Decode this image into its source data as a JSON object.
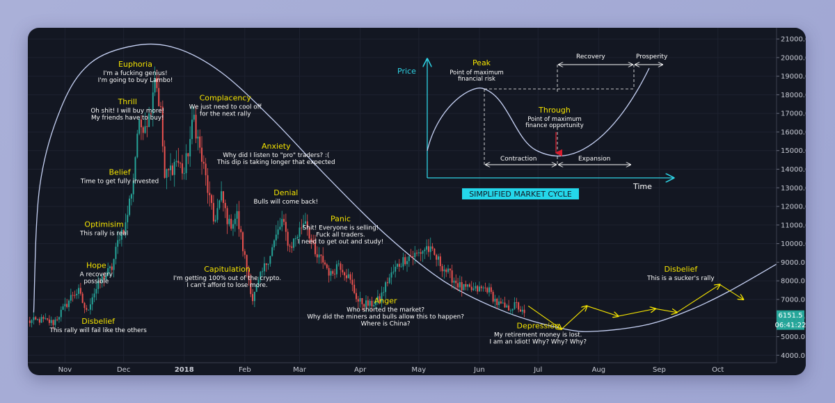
{
  "chart_data": {
    "type": "candlestick",
    "y_axis": {
      "ticks": [
        4000,
        5000,
        6000,
        7000,
        8000,
        9000,
        10000,
        11000,
        12000,
        13000,
        14000,
        15000,
        16000,
        17000,
        18000,
        19000,
        20000,
        21000
      ],
      "tick_labels": [
        "4000.0",
        "5000.0",
        "6000.0",
        "7000.0",
        "8000.0",
        "9000.0",
        "10000.0",
        "11000.0",
        "12000.0",
        "13000.0",
        "14000.0",
        "15000.0",
        "16000.0",
        "17000.0",
        "18000.0",
        "19000.0",
        "20000.0",
        "21000.0"
      ],
      "ylim": [
        3600,
        21600
      ]
    },
    "x_axis": {
      "tick_labels": [
        "Nov",
        "Dec",
        "2018",
        "Feb",
        "Mar",
        "Apr",
        "May",
        "Jun",
        "Jul",
        "Aug",
        "Sep",
        "Oct"
      ],
      "tick_dates": [
        "2017-11-01",
        "2017-12-01",
        "2018-01-01",
        "2018-02-01",
        "2018-03-01",
        "2018-04-01",
        "2018-05-01",
        "2018-06-01",
        "2018-07-01",
        "2018-08-01",
        "2018-09-01",
        "2018-10-01"
      ],
      "xlim": [
        "2017-10-13",
        "2018-10-31"
      ]
    },
    "price_points": [
      [
        "2017-10-13",
        5800
      ],
      [
        "2017-10-20",
        5900
      ],
      [
        "2017-10-26",
        5750
      ],
      [
        "2017-11-01",
        6600
      ],
      [
        "2017-11-05",
        7300
      ],
      [
        "2017-11-08",
        7400
      ],
      [
        "2017-11-12",
        6300
      ],
      [
        "2017-11-15",
        7200
      ],
      [
        "2017-11-20",
        8100
      ],
      [
        "2017-11-25",
        8700
      ],
      [
        "2017-11-29",
        10500
      ],
      [
        "2017-12-02",
        11000
      ],
      [
        "2017-12-06",
        13500
      ],
      [
        "2017-12-08",
        16000
      ],
      [
        "2017-12-11",
        16500
      ],
      [
        "2017-12-14",
        16800
      ],
      [
        "2017-12-17",
        19200
      ],
      [
        "2017-12-20",
        17000
      ],
      [
        "2017-12-22",
        13500
      ],
      [
        "2017-12-25",
        14000
      ],
      [
        "2017-12-28",
        14500
      ],
      [
        "2018-01-01",
        13800
      ],
      [
        "2018-01-06",
        16800
      ],
      [
        "2018-01-09",
        15000
      ],
      [
        "2018-01-12",
        13500
      ],
      [
        "2018-01-16",
        11200
      ],
      [
        "2018-01-20",
        12500
      ],
      [
        "2018-01-24",
        11000
      ],
      [
        "2018-01-28",
        11500
      ],
      [
        "2018-02-01",
        9200
      ],
      [
        "2018-02-05",
        7000
      ],
      [
        "2018-02-09",
        8200
      ],
      [
        "2018-02-14",
        9500
      ],
      [
        "2018-02-20",
        11200
      ],
      [
        "2018-02-24",
        9800
      ],
      [
        "2018-02-28",
        10500
      ],
      [
        "2018-03-04",
        11400
      ],
      [
        "2018-03-09",
        9300
      ],
      [
        "2018-03-13",
        9100
      ],
      [
        "2018-03-17",
        8300
      ],
      [
        "2018-03-21",
        9000
      ],
      [
        "2018-03-26",
        8200
      ],
      [
        "2018-03-31",
        6900
      ],
      [
        "2018-04-06",
        6700
      ],
      [
        "2018-04-11",
        7000
      ],
      [
        "2018-04-15",
        8000
      ],
      [
        "2018-04-20",
        8800
      ],
      [
        "2018-04-25",
        9300
      ],
      [
        "2018-04-30",
        9400
      ],
      [
        "2018-05-05",
        9800
      ],
      [
        "2018-05-10",
        9200
      ],
      [
        "2018-05-16",
        8400
      ],
      [
        "2018-05-23",
        7600
      ],
      [
        "2018-05-29",
        7500
      ],
      [
        "2018-06-05",
        7600
      ],
      [
        "2018-06-10",
        6800
      ],
      [
        "2018-06-15",
        6500
      ],
      [
        "2018-06-20",
        6700
      ],
      [
        "2018-06-24",
        6150
      ]
    ],
    "current_price": "6151.5",
    "countdown": "06:41:22",
    "annotations": [
      {
        "date": "2017-11-17",
        "price": 8700,
        "title": "Hope",
        "text": [
          "A recovery",
          "possible"
        ]
      },
      {
        "date": "2017-11-18",
        "price": 5700,
        "title": "Disbelief",
        "text": [
          "This rally will fail like the others"
        ]
      },
      {
        "date": "2017-11-21",
        "price": 10900,
        "title": "Optimisim",
        "text": [
          "This rally is real"
        ]
      },
      {
        "date": "2017-11-29",
        "price": 13700,
        "title": "Belief",
        "text": [
          "Time to get fully invested"
        ]
      },
      {
        "date": "2017-12-03",
        "price": 17500,
        "title": "Thrill",
        "text": [
          "Oh shit! I will buy more!",
          "My friends have to buy!"
        ]
      },
      {
        "date": "2017-12-07",
        "price": 19500,
        "title": "Euphoria",
        "text": [
          "I'm a fucking genius!",
          "I'm going to buy Lambo!"
        ]
      },
      {
        "date": "2018-01-22",
        "price": 17700,
        "title": "Complacency",
        "text": [
          "We just need to cool off",
          "for the next rally"
        ]
      },
      {
        "date": "2018-02-17",
        "price": 15100,
        "title": "Anxiety",
        "text": [
          "Why did I listen to  \"pro\" traders? :(",
          "This dip is taking longer that expected"
        ]
      },
      {
        "date": "2018-02-22",
        "price": 12600,
        "title": "Denial",
        "text": [
          "Bulls will come back!"
        ]
      },
      {
        "date": "2018-03-22",
        "price": 11200,
        "title": "Panic",
        "text": [
          "Shit! Everyone is selling!",
          "Fuck all traders.",
          "I need to get out and study!"
        ]
      },
      {
        "date": "2018-01-23",
        "price": 8500,
        "title": "Capitulation",
        "text": [
          "I'm getting 100% out of the crypto.",
          "I can't afford to lose more."
        ]
      },
      {
        "date": "2018-04-14",
        "price": 6800,
        "title": "Anger",
        "text": [
          "Who shorted the market?",
          "Why did the miners and bulls allow this to happen?",
          "Where is China?"
        ]
      },
      {
        "date": "2018-07-01",
        "price": 5450,
        "title": "Depression",
        "text": [
          "My retirement money is lost.",
          "I am an idiot! Why? Why? Why?"
        ]
      },
      {
        "date": "2018-09-12",
        "price": 8500,
        "title": "Disbelief",
        "text": [
          "This is a sucker's rally"
        ]
      }
    ],
    "projection_points": [
      [
        "2018-06-26",
        6650
      ],
      [
        "2018-07-13",
        5400
      ],
      [
        "2018-07-26",
        6650
      ],
      [
        "2018-08-11",
        6100
      ],
      [
        "2018-08-30",
        6500
      ],
      [
        "2018-09-10",
        6300
      ],
      [
        "2018-10-02",
        7800
      ],
      [
        "2018-10-14",
        7000
      ]
    ],
    "cycle_curve": [
      [
        "2017-10-16",
        6300
      ],
      [
        "2017-10-19",
        13000
      ],
      [
        "2017-10-30",
        17300
      ],
      [
        "2017-11-14",
        19700
      ],
      [
        "2017-12-07",
        20650
      ],
      [
        "2017-12-28",
        20500
      ],
      [
        "2018-01-20",
        19200
      ],
      [
        "2018-02-15",
        16700
      ],
      [
        "2018-03-15",
        13600
      ],
      [
        "2018-04-15",
        10400
      ],
      [
        "2018-05-15",
        7900
      ],
      [
        "2018-06-15",
        6300
      ],
      [
        "2018-07-15",
        5400
      ],
      [
        "2018-08-01",
        5300
      ],
      [
        "2018-08-26",
        5650
      ],
      [
        "2018-09-16",
        6400
      ],
      [
        "2018-10-06",
        7400
      ],
      [
        "2018-10-31",
        8900
      ]
    ],
    "inset": {
      "title": "SIMPLIFIED MARKET CYCLE",
      "y_label": "Price",
      "x_label": "Time",
      "peak": {
        "title": "Peak",
        "text": [
          "Point of maximum",
          "financial risk"
        ]
      },
      "trough": {
        "title": "Through",
        "text": [
          "Point of maximum",
          "finance opportunity"
        ]
      },
      "phases": [
        "Recovery",
        "Prosperity",
        "Contraction",
        "Expansion"
      ]
    }
  }
}
